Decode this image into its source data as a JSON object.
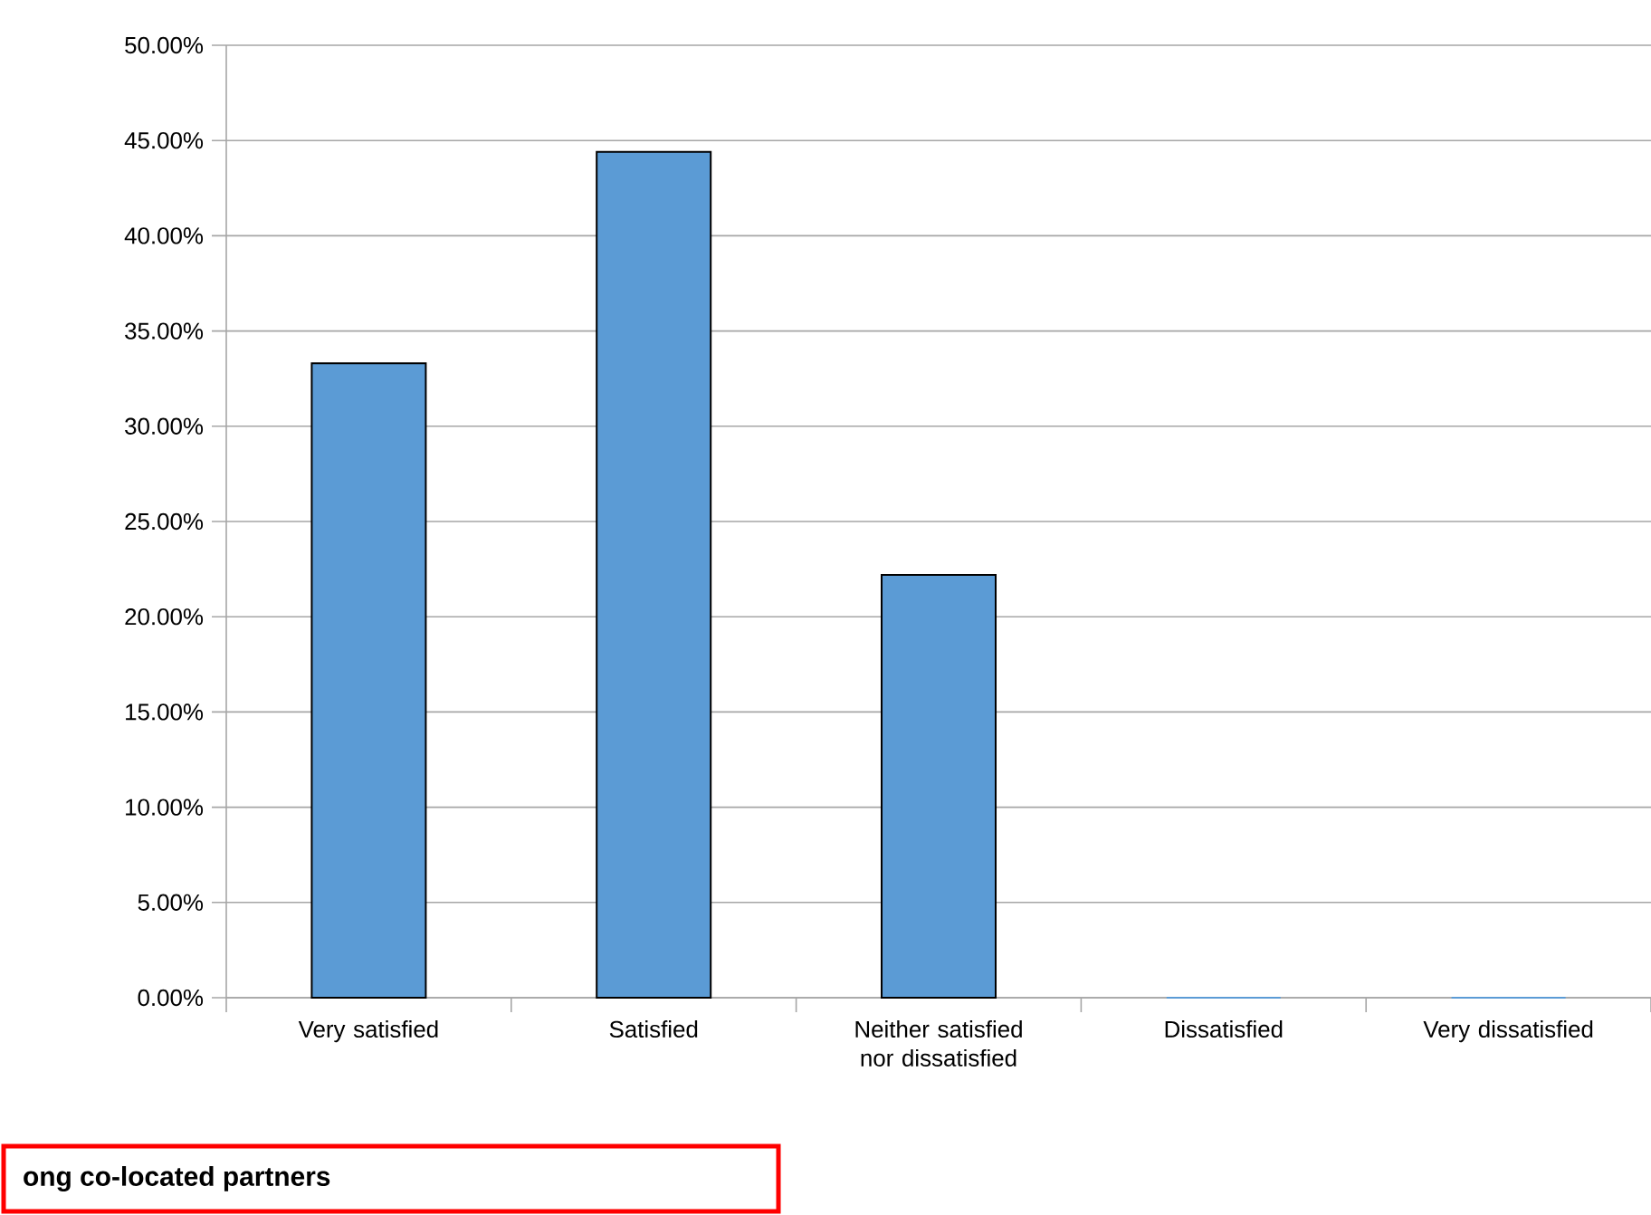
{
  "chart_data": {
    "type": "bar",
    "categories": [
      "Very satisfied",
      "Satisfied",
      "Neither satisfied nor dissatisfied",
      "Dissatisfied",
      "Very dissatisfied"
    ],
    "values": [
      33.3,
      44.4,
      22.2,
      0,
      0
    ],
    "color": "#5b9bd5",
    "ylim": [
      0,
      50
    ],
    "yticks": [
      {
        "value": 0,
        "label": "0.00%"
      },
      {
        "value": 5,
        "label": "5.00%"
      },
      {
        "value": 10,
        "label": "10.00%"
      },
      {
        "value": 15,
        "label": "15.00%"
      },
      {
        "value": 20,
        "label": "20.00%"
      },
      {
        "value": 25,
        "label": "25.00%"
      },
      {
        "value": 30,
        "label": "30.00%"
      },
      {
        "value": 35,
        "label": "35.00%"
      },
      {
        "value": 40,
        "label": "40.00%"
      },
      {
        "value": 45,
        "label": "45.00%"
      },
      {
        "value": 50,
        "label": "50.00%"
      }
    ],
    "grid": "y",
    "annotations": [
      "**ong co-located partners**"
    ]
  }
}
